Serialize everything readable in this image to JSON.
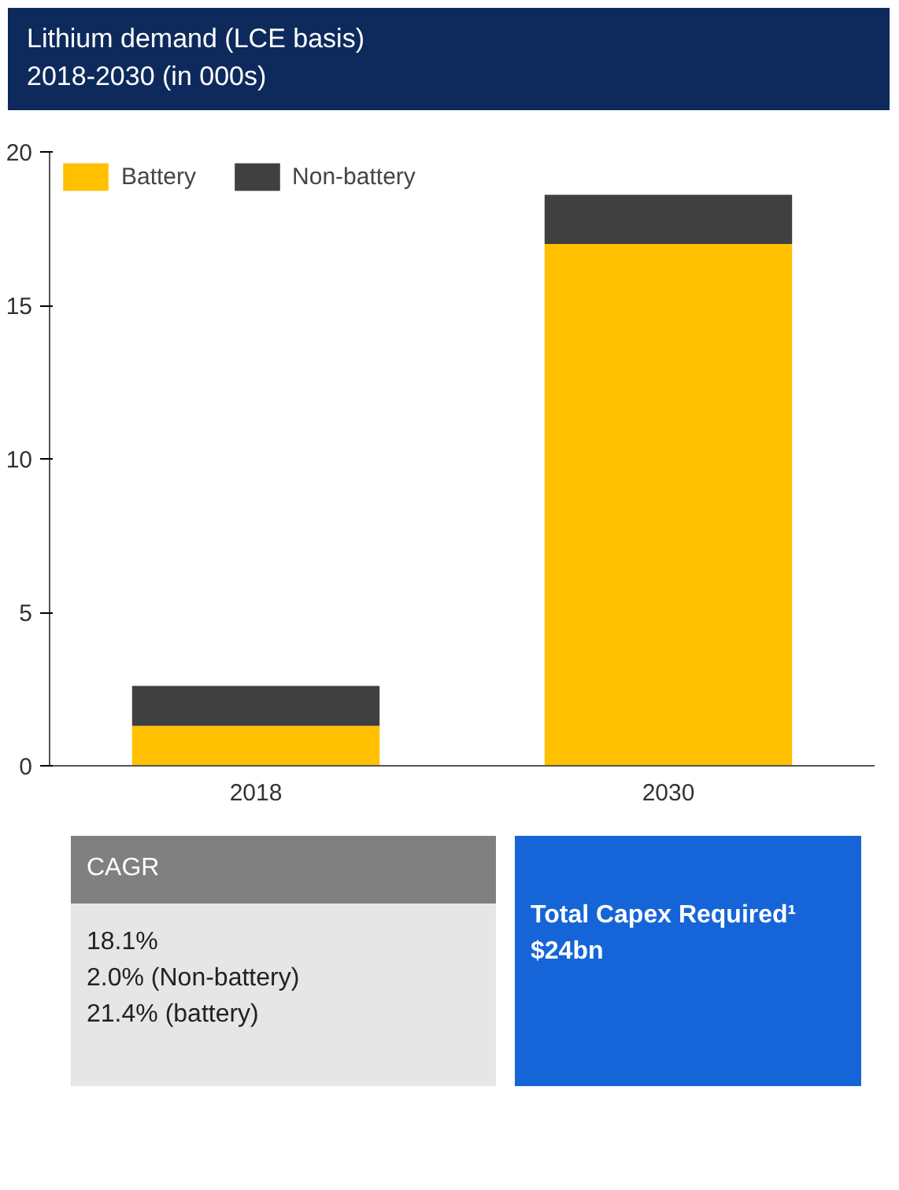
{
  "chart_data": {
    "type": "bar",
    "title": "Lithium demand (LCE basis)",
    "subtitle": "2018-2030 (in 000s)",
    "categories": [
      "2018",
      "2030"
    ],
    "series": [
      {
        "name": "Battery",
        "color": "#ffc000",
        "values": [
          1.3,
          17.0
        ]
      },
      {
        "name": "Non-battery",
        "color": "#404040",
        "values": [
          1.3,
          1.6
        ]
      }
    ],
    "stacked": true,
    "ylim": [
      0,
      20
    ],
    "yticks": [
      0,
      5,
      10,
      15,
      20
    ],
    "grid": false,
    "legend": "top left",
    "annotations": [
      "CAGR",
      "18.1%",
      "2.0% (Non-battery)",
      "21.4% (battery)",
      "Total Capex Required¹",
      "$24bn"
    ]
  }
}
